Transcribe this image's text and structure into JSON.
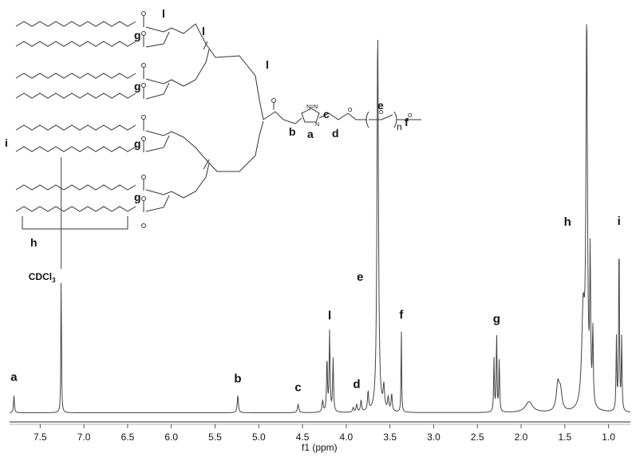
{
  "chart_data": {
    "type": "line",
    "title": "",
    "xlabel": "f1 (ppm)",
    "ylabel": "",
    "x_reversed": true,
    "xlim": [
      7.85,
      0.75
    ],
    "grid": false,
    "x_ticks": [
      "7.5",
      "7.0",
      "6.5",
      "6.0",
      "5.5",
      "5.0",
      "4.5",
      "4.0",
      "3.5",
      "3.0",
      "2.5",
      "2.0",
      "1.5",
      "1.0"
    ],
    "peaks": [
      {
        "label": "a",
        "ppm": 7.8,
        "intensity": 0.045
      },
      {
        "label": "CDCl3",
        "ppm": 7.26,
        "intensity": 0.38
      },
      {
        "label": "b",
        "ppm": 5.24,
        "intensity": 0.045
      },
      {
        "label": "c",
        "ppm": 4.55,
        "intensity": 0.022
      },
      {
        "label": "l",
        "ppm": 4.19,
        "intensity": 0.21
      },
      {
        "label": "d",
        "ppm": 3.88,
        "intensity": 0.03
      },
      {
        "label": "e",
        "ppm": 3.64,
        "intensity": 1.0
      },
      {
        "label": "f",
        "ppm": 3.37,
        "intensity": 0.22
      },
      {
        "label": "g",
        "ppm": 2.28,
        "intensity": 0.21
      },
      {
        "label": "h",
        "ppm": 1.25,
        "intensity": 1.0
      },
      {
        "label": "i",
        "ppm": 0.88,
        "intensity": 0.47
      }
    ],
    "annotations": [
      "a",
      "CDCl3",
      "b",
      "c",
      "l",
      "d",
      "e",
      "f",
      "g",
      "h",
      "i"
    ],
    "structure_labels": {
      "g": "g",
      "l": "l",
      "h": "h",
      "i": "i",
      "a": "a",
      "b": "b",
      "c": "c",
      "d": "d",
      "e": "e",
      "f": "f",
      "n": "n"
    }
  }
}
